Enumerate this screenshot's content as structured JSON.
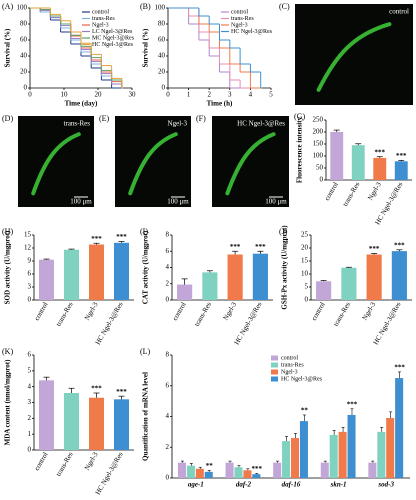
{
  "chart_data": [
    {
      "type": "line",
      "panel": "(A)",
      "xlabel": "Time (day)",
      "ylabel": "Survival (%)",
      "step": true,
      "legend": "upper right",
      "x": [
        0,
        3,
        6,
        9,
        12,
        15,
        18,
        21,
        24,
        27
      ],
      "xlim": [
        0,
        30
      ],
      "xticks": [
        0,
        10,
        20,
        30
      ],
      "ylim": [
        0,
        100
      ],
      "yticks": [
        0,
        20,
        40,
        60,
        80,
        100
      ],
      "series": [
        {
          "name": "control",
          "color": "#1f3b8c",
          "values": [
            100,
            95,
            85,
            70,
            55,
            40,
            25,
            10,
            0,
            0
          ]
        },
        {
          "name": "trans-Res",
          "color": "#7fb2e5",
          "values": [
            100,
            95,
            88,
            75,
            60,
            45,
            30,
            15,
            5,
            0
          ]
        },
        {
          "name": "Ngel-3",
          "color": "#e8604c",
          "values": [
            100,
            98,
            90,
            80,
            65,
            50,
            35,
            20,
            8,
            0
          ]
        },
        {
          "name": "LC Ngel-3@Res",
          "color": "#9a79c4",
          "values": [
            100,
            97,
            88,
            78,
            62,
            48,
            33,
            18,
            5,
            0
          ]
        },
        {
          "name": "MC Ngel-3@Res",
          "color": "#5aa469",
          "values": [
            100,
            98,
            90,
            80,
            66,
            52,
            38,
            22,
            10,
            0
          ]
        },
        {
          "name": "HC Ngel-3@Res",
          "color": "#e6a23c",
          "values": [
            100,
            100,
            92,
            84,
            70,
            56,
            42,
            28,
            12,
            0
          ]
        }
      ]
    },
    {
      "type": "line",
      "panel": "(B)",
      "xlabel": "Time (h)",
      "ylabel": "Survival (%)",
      "step": true,
      "legend": "upper right",
      "x": [
        0,
        0.5,
        1,
        1.5,
        2,
        2.5,
        3,
        3.5,
        4,
        4.5
      ],
      "xlim": [
        0,
        5
      ],
      "xticks": [
        0,
        1,
        2,
        3,
        4,
        5
      ],
      "ylim": [
        0,
        100
      ],
      "yticks": [
        0,
        20,
        40,
        60,
        80,
        100
      ],
      "series": [
        {
          "name": "control",
          "color": "#b085d0",
          "values": [
            100,
            100,
            80,
            60,
            40,
            20,
            0,
            0,
            0,
            0
          ]
        },
        {
          "name": "trans-Res",
          "color": "#e88fb0",
          "values": [
            100,
            100,
            90,
            70,
            50,
            30,
            10,
            0,
            0,
            0
          ]
        },
        {
          "name": "Ngel-3",
          "color": "#f07a4a",
          "values": [
            100,
            100,
            100,
            80,
            70,
            50,
            30,
            20,
            0,
            0
          ]
        },
        {
          "name": "HC Ngel-3@Res",
          "color": "#3d8fd1",
          "values": [
            100,
            100,
            100,
            90,
            80,
            60,
            50,
            30,
            20,
            0
          ]
        }
      ]
    },
    {
      "type": "bar",
      "panel": "(G)",
      "ylabel": "Fluorescence intensity",
      "categories": [
        "control",
        "trans-Res",
        "Ngel-3",
        "HC Ngel-3@Res"
      ],
      "colors": [
        "#c3a6d8",
        "#7fd1c0",
        "#f07a4a",
        "#3d8fd1"
      ],
      "values": [
        200,
        145,
        92,
        78
      ],
      "errors": [
        8,
        6,
        5,
        4
      ],
      "significance": [
        null,
        null,
        "***",
        "***"
      ],
      "ylim": [
        0,
        250
      ],
      "yticks": [
        0,
        50,
        100,
        150,
        200,
        250
      ]
    },
    {
      "type": "bar",
      "panel": "(H)",
      "ylabel": "SOD activity  (U/mgprot)",
      "categories": [
        "control",
        "trans-Res",
        "Ngel-3",
        "HC Ngel-3@Res"
      ],
      "colors": [
        "#c3a6d8",
        "#7fd1c0",
        "#f07a4a",
        "#3d8fd1"
      ],
      "values": [
        9.3,
        11.6,
        12.8,
        13.2
      ],
      "errors": [
        0.15,
        0.15,
        0.3,
        0.3
      ],
      "significance": [
        null,
        null,
        "***",
        "***"
      ],
      "ylim": [
        0,
        15
      ],
      "yticks": [
        0,
        3,
        6,
        9,
        12,
        15
      ]
    },
    {
      "type": "bar",
      "panel": "(I)",
      "ylabel": "CAT activity  (U/mgprot)",
      "categories": [
        "control",
        "trans-Res",
        "Ngel-3",
        "HC Ngel-3@Res"
      ],
      "colors": [
        "#c3a6d8",
        "#7fd1c0",
        "#f07a4a",
        "#3d8fd1"
      ],
      "values": [
        1.9,
        3.4,
        5.6,
        5.7
      ],
      "errors": [
        0.7,
        0.2,
        0.4,
        0.3
      ],
      "significance": [
        null,
        null,
        "***",
        "***"
      ],
      "ylim": [
        0,
        8
      ],
      "yticks": [
        0,
        2,
        4,
        6,
        8
      ]
    },
    {
      "type": "bar",
      "panel": "(J)",
      "ylabel": "GSH-Px activity  (U/mgprot)",
      "categories": [
        "control",
        "trans-Res",
        "Ngel-3",
        "HC Ngel-3@Res"
      ],
      "colors": [
        "#c3a6d8",
        "#7fd1c0",
        "#f07a4a",
        "#3d8fd1"
      ],
      "values": [
        7.2,
        12.4,
        17.5,
        18.8
      ],
      "errors": [
        0.3,
        0.2,
        0.4,
        0.5
      ],
      "significance": [
        null,
        null,
        "***",
        "***"
      ],
      "ylim": [
        0,
        25
      ],
      "yticks": [
        0,
        5,
        10,
        15,
        20,
        25
      ]
    },
    {
      "type": "bar",
      "panel": "(K)",
      "ylabel": "MDA content (nmol/mgprot)",
      "categories": [
        "control",
        "trans-Res",
        "Ngel-3",
        "HC Ngel-3@Res"
      ],
      "colors": [
        "#c3a6d8",
        "#7fd1c0",
        "#f07a4a",
        "#3d8fd1"
      ],
      "values": [
        4.4,
        3.6,
        3.3,
        3.2
      ],
      "errors": [
        0.2,
        0.3,
        0.3,
        0.2
      ],
      "significance": [
        null,
        null,
        "***",
        "***"
      ],
      "ylim": [
        0,
        6
      ],
      "yticks": [
        0,
        1,
        2,
        3,
        4,
        5,
        6
      ]
    },
    {
      "type": "grouped_bar",
      "panel": "(L)",
      "ylabel": "Quantification of mRNA level",
      "legend": "upper center",
      "categories": [
        "age-1",
        "daf-2",
        "daf-16",
        "skn-1",
        "sod-3"
      ],
      "ylim": [
        0,
        8
      ],
      "yticks": [
        0,
        2,
        4,
        6,
        8
      ],
      "series": [
        {
          "name": "control",
          "color": "#c3a6d8",
          "values": [
            1,
            1,
            1,
            1,
            1
          ],
          "errors": [
            0.1,
            0.1,
            0.1,
            0.1,
            0.1
          ],
          "significance": [
            null,
            null,
            null,
            null,
            null
          ]
        },
        {
          "name": "trans-Res",
          "color": "#7fd1c0",
          "values": [
            0.8,
            0.7,
            2.4,
            2.8,
            3.0
          ],
          "errors": [
            0.15,
            0.1,
            0.3,
            0.3,
            0.3
          ],
          "significance": [
            null,
            null,
            null,
            null,
            null
          ]
        },
        {
          "name": "Ngel-3",
          "color": "#f07a4a",
          "values": [
            0.6,
            0.5,
            2.6,
            3.0,
            3.9
          ],
          "errors": [
            0.1,
            0.1,
            0.3,
            0.3,
            0.4
          ],
          "significance": [
            null,
            null,
            null,
            null,
            null
          ]
        },
        {
          "name": "HC Ngel-3@Res",
          "color": "#3d8fd1",
          "values": [
            0.4,
            0.25,
            3.7,
            4.1,
            6.5
          ],
          "errors": [
            0.1,
            0.05,
            0.4,
            0.4,
            0.4
          ],
          "significance": [
            "**",
            "***",
            "**",
            "***",
            "***"
          ]
        }
      ]
    }
  ],
  "images": [
    {
      "panel": "(C)",
      "label": "control"
    },
    {
      "panel": "(D)",
      "label": "trans-Res",
      "scale": "100 μm"
    },
    {
      "panel": "(E)",
      "label": "Ngel-3",
      "scale": "100 μm"
    },
    {
      "panel": "(F)",
      "label": "HC Ngel-3@Res",
      "scale": "100 μm"
    }
  ]
}
